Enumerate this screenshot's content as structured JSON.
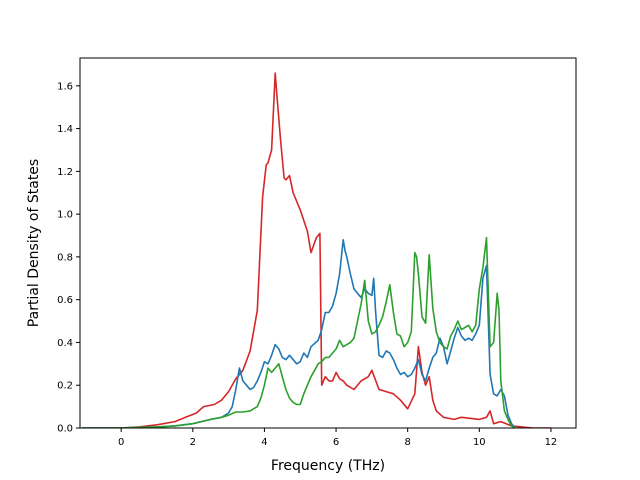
{
  "chart_data": {
    "type": "line",
    "title": "",
    "xlabel": "Frequency (THz)",
    "ylabel": "Partial Density of States",
    "xlim": [
      -1.15,
      12.7
    ],
    "ylim": [
      0.0,
      1.73
    ],
    "xticks": [
      0,
      2,
      4,
      6,
      8,
      10,
      12
    ],
    "xtick_labels": [
      "0",
      "2",
      "4",
      "6",
      "8",
      "10",
      "12"
    ],
    "yticks": [
      0.0,
      0.2,
      0.4,
      0.6,
      0.8,
      1.0,
      1.2,
      1.4,
      1.6
    ],
    "ytick_labels": [
      "0.0",
      "0.2",
      "0.4",
      "0.6",
      "0.8",
      "1.0",
      "1.2",
      "1.4",
      "1.6"
    ],
    "grid": false,
    "legend": "none",
    "series": [
      {
        "color": "#d62728",
        "x": [
          -1.1,
          0.0,
          0.5,
          1.0,
          1.5,
          1.8,
          2.1,
          2.3,
          2.6,
          2.8,
          3.0,
          3.2,
          3.4,
          3.6,
          3.8,
          3.95,
          4.05,
          4.1,
          4.2,
          4.25,
          4.3,
          4.35,
          4.45,
          4.55,
          4.6,
          4.7,
          4.8,
          5.0,
          5.2,
          5.3,
          5.45,
          5.55,
          5.6,
          5.7,
          5.8,
          5.9,
          6.0,
          6.1,
          6.2,
          6.3,
          6.5,
          6.7,
          6.9,
          7.0,
          7.2,
          7.4,
          7.6,
          7.8,
          8.0,
          8.2,
          8.3,
          8.4,
          8.5,
          8.6,
          8.7,
          8.8,
          9.0,
          9.3,
          9.5,
          10.0,
          10.2,
          10.3,
          10.4,
          10.6,
          10.9,
          11.5,
          12.0
        ],
        "y": [
          0.0,
          0.0,
          0.005,
          0.015,
          0.03,
          0.05,
          0.07,
          0.1,
          0.11,
          0.13,
          0.17,
          0.23,
          0.27,
          0.36,
          0.55,
          1.08,
          1.23,
          1.24,
          1.3,
          1.48,
          1.66,
          1.55,
          1.35,
          1.17,
          1.16,
          1.18,
          1.1,
          1.02,
          0.92,
          0.82,
          0.89,
          0.91,
          0.2,
          0.24,
          0.22,
          0.22,
          0.26,
          0.23,
          0.22,
          0.2,
          0.18,
          0.22,
          0.24,
          0.27,
          0.18,
          0.17,
          0.16,
          0.13,
          0.09,
          0.16,
          0.38,
          0.26,
          0.2,
          0.24,
          0.13,
          0.08,
          0.05,
          0.04,
          0.05,
          0.04,
          0.05,
          0.08,
          0.02,
          0.03,
          0.01,
          0.0,
          0.0
        ]
      },
      {
        "color": "#1f77b4",
        "x": [
          -1.1,
          0.0,
          1.0,
          1.5,
          2.0,
          2.5,
          2.8,
          3.0,
          3.1,
          3.2,
          3.3,
          3.4,
          3.5,
          3.6,
          3.7,
          3.8,
          3.9,
          4.0,
          4.1,
          4.2,
          4.3,
          4.4,
          4.5,
          4.6,
          4.7,
          4.9,
          5.0,
          5.1,
          5.2,
          5.3,
          5.5,
          5.6,
          5.7,
          5.8,
          5.9,
          6.0,
          6.1,
          6.2,
          6.25,
          6.3,
          6.4,
          6.5,
          6.6,
          6.7,
          6.8,
          6.9,
          7.0,
          7.05,
          7.1,
          7.2,
          7.3,
          7.4,
          7.5,
          7.6,
          7.7,
          7.8,
          7.9,
          8.0,
          8.1,
          8.2,
          8.3,
          8.4,
          8.5,
          8.6,
          8.7,
          8.8,
          8.9,
          9.0,
          9.1,
          9.2,
          9.3,
          9.4,
          9.5,
          9.6,
          9.7,
          9.8,
          9.9,
          10.0,
          10.1,
          10.2,
          10.3,
          10.4,
          10.5,
          10.6,
          10.7,
          10.8,
          10.9,
          11.0
        ],
        "y": [
          0.0,
          0.0,
          0.005,
          0.01,
          0.02,
          0.04,
          0.05,
          0.07,
          0.1,
          0.18,
          0.28,
          0.22,
          0.2,
          0.18,
          0.19,
          0.22,
          0.26,
          0.31,
          0.3,
          0.34,
          0.39,
          0.37,
          0.33,
          0.32,
          0.34,
          0.3,
          0.31,
          0.35,
          0.33,
          0.38,
          0.41,
          0.46,
          0.54,
          0.54,
          0.57,
          0.63,
          0.72,
          0.88,
          0.83,
          0.8,
          0.72,
          0.65,
          0.63,
          0.61,
          0.65,
          0.63,
          0.62,
          0.7,
          0.55,
          0.34,
          0.33,
          0.36,
          0.35,
          0.32,
          0.28,
          0.25,
          0.26,
          0.24,
          0.25,
          0.28,
          0.32,
          0.25,
          0.22,
          0.28,
          0.33,
          0.35,
          0.42,
          0.38,
          0.3,
          0.36,
          0.42,
          0.47,
          0.43,
          0.41,
          0.42,
          0.41,
          0.44,
          0.48,
          0.7,
          0.76,
          0.25,
          0.16,
          0.15,
          0.18,
          0.15,
          0.06,
          0.02,
          0.0
        ]
      },
      {
        "color": "#2ca02c",
        "x": [
          -1.1,
          0.0,
          1.0,
          1.5,
          2.0,
          2.5,
          2.8,
          3.0,
          3.2,
          3.4,
          3.6,
          3.8,
          3.9,
          4.0,
          4.1,
          4.2,
          4.3,
          4.4,
          4.5,
          4.6,
          4.7,
          4.8,
          4.9,
          5.0,
          5.1,
          5.2,
          5.3,
          5.4,
          5.5,
          5.6,
          5.7,
          5.8,
          5.9,
          6.0,
          6.1,
          6.2,
          6.3,
          6.4,
          6.5,
          6.6,
          6.7,
          6.8,
          6.9,
          7.0,
          7.1,
          7.2,
          7.3,
          7.4,
          7.5,
          7.6,
          7.7,
          7.8,
          7.9,
          8.0,
          8.1,
          8.2,
          8.25,
          8.3,
          8.4,
          8.5,
          8.6,
          8.7,
          8.8,
          8.9,
          9.0,
          9.1,
          9.2,
          9.3,
          9.4,
          9.5,
          9.6,
          9.7,
          9.8,
          9.9,
          10.0,
          10.1,
          10.2,
          10.3,
          10.4,
          10.5,
          10.55,
          10.6,
          10.7,
          10.8,
          10.9,
          11.0
        ],
        "y": [
          0.0,
          0.0,
          0.005,
          0.01,
          0.02,
          0.04,
          0.05,
          0.06,
          0.075,
          0.075,
          0.08,
          0.1,
          0.14,
          0.2,
          0.28,
          0.26,
          0.28,
          0.3,
          0.24,
          0.18,
          0.14,
          0.12,
          0.11,
          0.11,
          0.16,
          0.2,
          0.24,
          0.27,
          0.3,
          0.31,
          0.33,
          0.33,
          0.35,
          0.37,
          0.41,
          0.38,
          0.39,
          0.4,
          0.42,
          0.5,
          0.58,
          0.69,
          0.5,
          0.44,
          0.45,
          0.48,
          0.52,
          0.59,
          0.67,
          0.54,
          0.44,
          0.43,
          0.38,
          0.4,
          0.45,
          0.82,
          0.8,
          0.72,
          0.52,
          0.49,
          0.81,
          0.56,
          0.45,
          0.4,
          0.38,
          0.37,
          0.43,
          0.46,
          0.5,
          0.46,
          0.47,
          0.48,
          0.45,
          0.48,
          0.65,
          0.75,
          0.89,
          0.38,
          0.4,
          0.63,
          0.55,
          0.22,
          0.08,
          0.04,
          0.01,
          0.0
        ]
      }
    ]
  }
}
